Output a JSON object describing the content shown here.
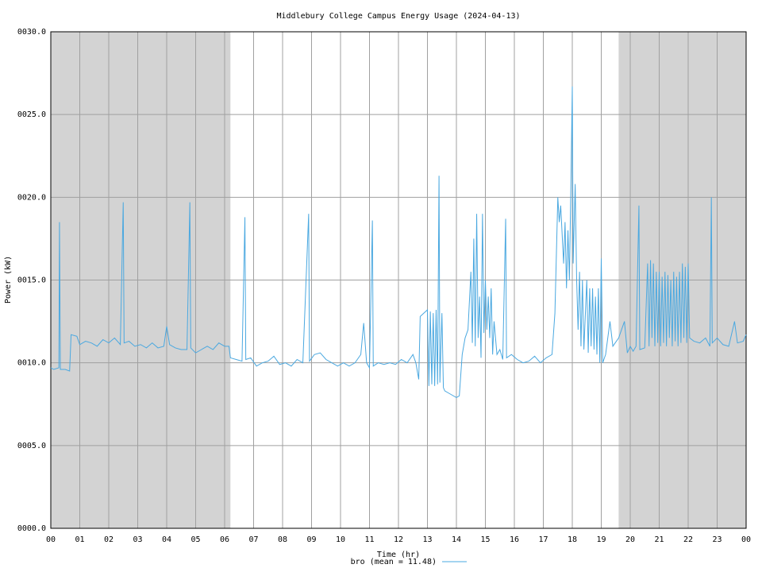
{
  "chart_data": {
    "type": "line",
    "title": "Middlebury College Campus Energy Usage (2024-04-13)",
    "x_label": "Time (hr)",
    "y_label": "Power (kW)",
    "xlim": [
      0,
      24
    ],
    "ylim": [
      0,
      30
    ],
    "xticks": [
      {
        "value": 0,
        "label": "00"
      },
      {
        "value": 1,
        "label": "01"
      },
      {
        "value": 2,
        "label": "02"
      },
      {
        "value": 3,
        "label": "03"
      },
      {
        "value": 4,
        "label": "04"
      },
      {
        "value": 5,
        "label": "05"
      },
      {
        "value": 6,
        "label": "06"
      },
      {
        "value": 7,
        "label": "07"
      },
      {
        "value": 8,
        "label": "08"
      },
      {
        "value": 9,
        "label": "09"
      },
      {
        "value": 10,
        "label": "10"
      },
      {
        "value": 11,
        "label": "11"
      },
      {
        "value": 12,
        "label": "12"
      },
      {
        "value": 13,
        "label": "13"
      },
      {
        "value": 14,
        "label": "14"
      },
      {
        "value": 15,
        "label": "15"
      },
      {
        "value": 16,
        "label": "16"
      },
      {
        "value": 17,
        "label": "17"
      },
      {
        "value": 18,
        "label": "18"
      },
      {
        "value": 19,
        "label": "19"
      },
      {
        "value": 20,
        "label": "20"
      },
      {
        "value": 21,
        "label": "21"
      },
      {
        "value": 22,
        "label": "22"
      },
      {
        "value": 23,
        "label": "23"
      },
      {
        "value": 24,
        "label": "00"
      }
    ],
    "yticks": [
      {
        "value": 0,
        "label": "0000.0"
      },
      {
        "value": 5,
        "label": "0005.0"
      },
      {
        "value": 10,
        "label": "0010.0"
      },
      {
        "value": 15,
        "label": "0015.0"
      },
      {
        "value": 20,
        "label": "0020.0"
      },
      {
        "value": 25,
        "label": "0025.0"
      },
      {
        "value": 30,
        "label": "0030.0"
      }
    ],
    "grid": true,
    "shaded_regions": [
      [
        0,
        6.2
      ],
      [
        19.6,
        24
      ]
    ],
    "shade_color": "#d3d3d3",
    "x": [
      0,
      0.1,
      0.28,
      0.3,
      0.33,
      0.5,
      0.65,
      0.7,
      0.9,
      1.0,
      1.2,
      1.4,
      1.6,
      1.8,
      2.0,
      2.2,
      2.4,
      2.5,
      2.53,
      2.7,
      2.9,
      3.1,
      3.3,
      3.5,
      3.7,
      3.9,
      4.0,
      4.1,
      4.3,
      4.5,
      4.7,
      4.8,
      4.83,
      5.0,
      5.2,
      5.4,
      5.6,
      5.8,
      6.0,
      6.15,
      6.2,
      6.4,
      6.6,
      6.7,
      6.73,
      6.9,
      7.1,
      7.3,
      7.5,
      7.7,
      7.9,
      8.1,
      8.3,
      8.5,
      8.7,
      8.9,
      8.93,
      9.1,
      9.3,
      9.5,
      9.7,
      9.9,
      10.1,
      10.3,
      10.5,
      10.7,
      10.8,
      10.9,
      11.0,
      11.1,
      11.13,
      11.3,
      11.5,
      11.7,
      11.9,
      12.1,
      12.3,
      12.5,
      12.6,
      12.7,
      12.75,
      13.0,
      13.05,
      13.1,
      13.15,
      13.2,
      13.25,
      13.3,
      13.35,
      13.4,
      13.43,
      13.5,
      13.55,
      13.6,
      13.8,
      14.0,
      14.1,
      14.2,
      14.3,
      14.4,
      14.5,
      14.55,
      14.6,
      14.65,
      14.7,
      14.75,
      14.8,
      14.85,
      14.9,
      14.95,
      15.0,
      15.05,
      15.1,
      15.15,
      15.2,
      15.25,
      15.3,
      15.4,
      15.5,
      15.6,
      15.7,
      15.73,
      15.9,
      16.1,
      16.3,
      16.5,
      16.7,
      16.9,
      17.1,
      17.3,
      17.4,
      17.5,
      17.55,
      17.6,
      17.7,
      17.75,
      17.8,
      17.85,
      17.9,
      17.95,
      18.0,
      18.03,
      18.1,
      18.15,
      18.2,
      18.25,
      18.3,
      18.35,
      18.4,
      18.5,
      18.55,
      18.6,
      18.65,
      18.7,
      18.75,
      18.8,
      18.85,
      18.9,
      18.95,
      19.0,
      19.05,
      19.15,
      19.3,
      19.4,
      19.6,
      19.8,
      19.9,
      20.0,
      20.1,
      20.2,
      20.3,
      20.33,
      20.5,
      20.6,
      20.65,
      20.7,
      20.75,
      20.8,
      20.85,
      20.9,
      20.95,
      21.0,
      21.05,
      21.1,
      21.15,
      21.2,
      21.25,
      21.3,
      21.35,
      21.4,
      21.45,
      21.5,
      21.55,
      21.6,
      21.65,
      21.7,
      21.75,
      21.8,
      21.85,
      21.9,
      21.95,
      22.0,
      22.05,
      22.2,
      22.4,
      22.6,
      22.75,
      22.8,
      22.83,
      23.0,
      23.2,
      23.4,
      23.6,
      23.7,
      23.9,
      24.0
    ],
    "series": [
      {
        "name": "bro (mean = 11.48)",
        "color": "#4aa8e0",
        "values": [
          9.7,
          9.6,
          9.7,
          18.5,
          9.6,
          9.6,
          9.5,
          11.7,
          11.6,
          11.1,
          11.3,
          11.2,
          11.0,
          11.4,
          11.2,
          11.5,
          11.1,
          19.7,
          11.2,
          11.3,
          11.0,
          11.1,
          10.9,
          11.2,
          10.9,
          11.0,
          12.2,
          11.1,
          10.9,
          10.8,
          10.8,
          19.7,
          10.9,
          10.6,
          10.8,
          11.0,
          10.8,
          11.2,
          11.0,
          11.0,
          10.3,
          10.2,
          10.1,
          18.8,
          10.2,
          10.3,
          9.8,
          10.0,
          10.1,
          10.4,
          9.9,
          10.0,
          9.8,
          10.2,
          10.0,
          19.0,
          10.1,
          10.5,
          10.6,
          10.2,
          10.0,
          9.8,
          10.0,
          9.8,
          10.0,
          10.5,
          12.4,
          10.0,
          9.7,
          18.6,
          9.8,
          10.0,
          9.9,
          10.0,
          9.9,
          10.2,
          10.0,
          10.5,
          10.0,
          9.0,
          12.8,
          13.2,
          8.6,
          13.1,
          8.7,
          13.0,
          8.6,
          13.2,
          8.7,
          21.3,
          8.8,
          13.0,
          8.5,
          8.3,
          8.1,
          7.9,
          8.0,
          10.5,
          11.5,
          12.0,
          15.5,
          11.2,
          17.5,
          11.0,
          19.0,
          11.5,
          14.0,
          10.3,
          19.0,
          11.8,
          15.0,
          12.0,
          14.0,
          11.5,
          14.5,
          10.5,
          12.5,
          10.5,
          10.8,
          10.2,
          18.7,
          10.3,
          10.5,
          10.2,
          10.0,
          10.1,
          10.4,
          10.0,
          10.3,
          10.5,
          13.0,
          20.0,
          18.5,
          19.5,
          16.0,
          18.5,
          14.5,
          18.0,
          15.0,
          20.5,
          26.7,
          16.0,
          20.8,
          15.0,
          12.0,
          15.5,
          11.0,
          15.0,
          10.8,
          15.0,
          10.6,
          14.5,
          11.0,
          14.5,
          10.8,
          14.0,
          10.5,
          14.5,
          10.0,
          16.3,
          10.0,
          10.5,
          12.5,
          11.0,
          11.5,
          12.5,
          10.6,
          11.0,
          10.7,
          11.0,
          19.5,
          10.8,
          10.9,
          16.0,
          11.0,
          16.2,
          11.5,
          16.0,
          11.0,
          15.5,
          11.2,
          15.5,
          11.0,
          15.2,
          11.2,
          15.5,
          11.0,
          15.3,
          11.5,
          15.0,
          11.0,
          15.5,
          11.3,
          15.2,
          11.0,
          15.5,
          11.2,
          16.0,
          11.5,
          15.8,
          11.2,
          16.0,
          11.5,
          11.3,
          11.2,
          11.5,
          11.0,
          20.0,
          11.2,
          11.5,
          11.1,
          11.0,
          12.5,
          11.2,
          11.3,
          11.7
        ]
      }
    ]
  }
}
